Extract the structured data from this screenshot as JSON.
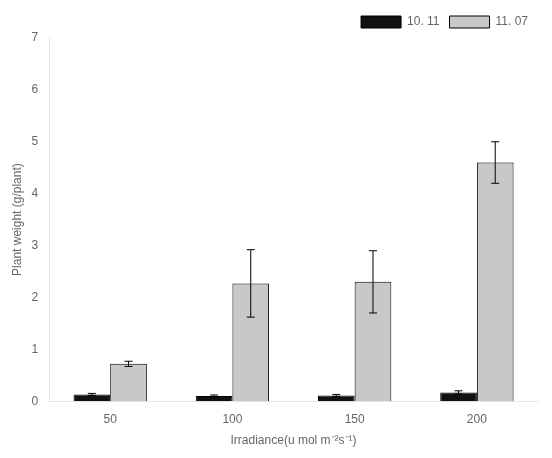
{
  "chart_data": {
    "type": "bar",
    "xlabel": "Irradiance(u mol m⁻²s⁻¹)",
    "ylabel": "Plant weight (g/plant)",
    "categories": [
      "50",
      "100",
      "150",
      "200"
    ],
    "series": [
      {
        "name": "10. 11",
        "color": "#111111",
        "values": [
          0.13,
          0.1,
          0.11,
          0.17
        ],
        "errors": [
          0.02,
          0.02,
          0.02,
          0.03
        ]
      },
      {
        "name": "11. 07",
        "color": "#c8c8c8",
        "values": [
          0.72,
          2.27,
          2.3,
          4.6
        ],
        "errors": [
          0.05,
          0.65,
          0.6,
          0.4
        ]
      }
    ],
    "ylim": [
      0,
      7
    ],
    "yticks": [
      0,
      1,
      2,
      3,
      4,
      5,
      6,
      7
    ],
    "grid": false,
    "legend": "upper right"
  }
}
